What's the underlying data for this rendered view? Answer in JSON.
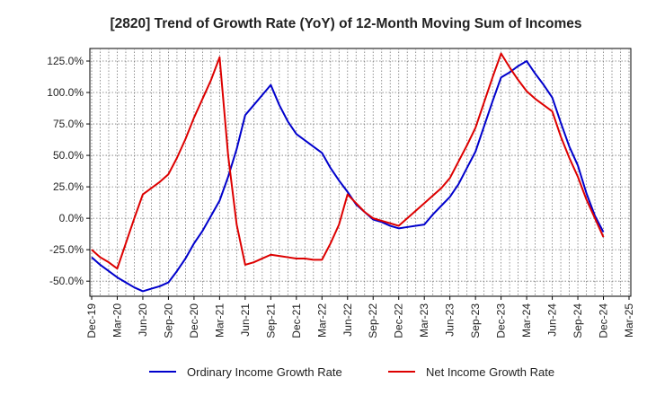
{
  "chart_data": {
    "type": "line",
    "title": "[2820]  Trend of Growth Rate (YoY) of 12-Month Moving Sum of Incomes",
    "xlabel": "",
    "ylabel": "",
    "y_ticks": [
      "-50.0%",
      "-25.0%",
      "0.0%",
      "25.0%",
      "50.0%",
      "75.0%",
      "100.0%",
      "125.0%"
    ],
    "y_tick_values": [
      -50,
      -25,
      0,
      25,
      50,
      75,
      100,
      125
    ],
    "ylim": [
      -62,
      135
    ],
    "x_ticks": [
      "Dec-19",
      "Mar-20",
      "Jun-20",
      "Sep-20",
      "Dec-20",
      "Mar-21",
      "Jun-21",
      "Sep-21",
      "Dec-21",
      "Mar-22",
      "Jun-22",
      "Sep-22",
      "Dec-22",
      "Mar-23",
      "Jun-23",
      "Sep-23",
      "Dec-23",
      "Mar-24",
      "Jun-24",
      "Sep-24",
      "Dec-24",
      "Mar-25"
    ],
    "grid": true,
    "legend_position": "bottom",
    "series": [
      {
        "name": "Ordinary Income Growth Rate",
        "color": "#0000cc",
        "x": [
          "Dec-19",
          "Jan-20",
          "Feb-20",
          "Mar-20",
          "Apr-20",
          "May-20",
          "Jun-20",
          "Jul-20",
          "Aug-20",
          "Sep-20",
          "Oct-20",
          "Nov-20",
          "Dec-20",
          "Jan-21",
          "Feb-21",
          "Mar-21",
          "Apr-21",
          "May-21",
          "Jun-21",
          "Jul-21",
          "Aug-21",
          "Sep-21",
          "Oct-21",
          "Nov-21",
          "Dec-21",
          "Jan-22",
          "Feb-22",
          "Mar-22",
          "Apr-22",
          "May-22",
          "Jun-22",
          "Jul-22",
          "Aug-22",
          "Sep-22",
          "Oct-22",
          "Nov-22",
          "Dec-22",
          "Jan-23",
          "Feb-23",
          "Mar-23",
          "Apr-23",
          "May-23",
          "Jun-23",
          "Jul-23",
          "Aug-23",
          "Sep-23",
          "Oct-23",
          "Nov-23",
          "Dec-23",
          "Jan-24",
          "Feb-24",
          "Mar-24",
          "Apr-24",
          "May-24",
          "Jun-24",
          "Jul-24",
          "Aug-24",
          "Sep-24",
          "Oct-24",
          "Nov-24",
          "Dec-24"
        ],
        "values": [
          -31,
          -37,
          -42,
          -47,
          -51,
          -55,
          -58,
          -56,
          -54,
          -51,
          -42,
          -32,
          -20,
          -10,
          2,
          14,
          33,
          55,
          82,
          90,
          98,
          106,
          90,
          77,
          67,
          62,
          57,
          52,
          40,
          30,
          21,
          11,
          5,
          -1,
          -3,
          -6,
          -8,
          -7,
          -6,
          -5,
          3,
          10,
          17,
          27,
          40,
          53,
          73,
          93,
          112,
          116,
          121,
          125,
          115,
          106,
          96,
          76,
          57,
          42,
          20,
          2,
          -11
        ]
      },
      {
        "name": "Net Income Growth Rate",
        "color": "#dd0000",
        "x": [
          "Dec-19",
          "Jan-20",
          "Feb-20",
          "Mar-20",
          "Apr-20",
          "May-20",
          "Jun-20",
          "Jul-20",
          "Aug-20",
          "Sep-20",
          "Oct-20",
          "Nov-20",
          "Dec-20",
          "Jan-21",
          "Feb-21",
          "Mar-21",
          "Apr-21",
          "May-21",
          "Jun-21",
          "Jul-21",
          "Aug-21",
          "Sep-21",
          "Oct-21",
          "Nov-21",
          "Dec-21",
          "Jan-22",
          "Feb-22",
          "Mar-22",
          "Apr-22",
          "May-22",
          "Jun-22",
          "Jul-22",
          "Aug-22",
          "Sep-22",
          "Oct-22",
          "Nov-22",
          "Dec-22",
          "Jan-23",
          "Feb-23",
          "Mar-23",
          "Apr-23",
          "May-23",
          "Jun-23",
          "Jul-23",
          "Aug-23",
          "Sep-23",
          "Oct-23",
          "Nov-23",
          "Dec-23",
          "Jan-24",
          "Feb-24",
          "Mar-24",
          "Apr-24",
          "May-24",
          "Jun-24",
          "Jul-24",
          "Aug-24",
          "Sep-24",
          "Oct-24",
          "Nov-24",
          "Dec-24"
        ],
        "values": [
          -25,
          -31,
          -35,
          -40,
          -20,
          0,
          19,
          24,
          29,
          35,
          48,
          63,
          80,
          95,
          110,
          128,
          50,
          -5,
          -37,
          -35,
          -32,
          -29,
          -30,
          -31,
          -32,
          -32,
          -33,
          -33,
          -20,
          -5,
          19,
          12,
          5,
          0,
          -2,
          -4,
          -6,
          0,
          6,
          12,
          18,
          24,
          32,
          45,
          58,
          72,
          92,
          112,
          131,
          120,
          110,
          101,
          95,
          90,
          85,
          65,
          48,
          33,
          15,
          0,
          -15
        ]
      }
    ]
  }
}
